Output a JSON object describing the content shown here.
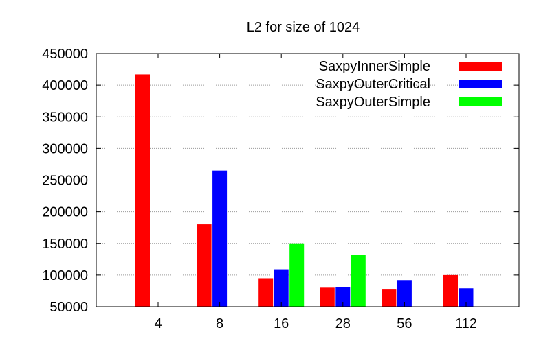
{
  "chart_data": {
    "type": "bar",
    "title": "L2 for size of 1024",
    "xlabel": "",
    "ylabel": "",
    "ylim": [
      50000,
      450000
    ],
    "yticks": [
      50000,
      100000,
      150000,
      200000,
      250000,
      300000,
      350000,
      400000,
      450000
    ],
    "grid": true,
    "legend_position": "top-right",
    "categories": [
      "4",
      "8",
      "16",
      "28",
      "56",
      "112"
    ],
    "series": [
      {
        "name": "SaxpyInnerSimple",
        "color": "#ff0000",
        "values": [
          417000,
          180000,
          95000,
          80000,
          77000,
          100000
        ]
      },
      {
        "name": "SaxpyOuterCritical",
        "color": "#0000ff",
        "values": [
          null,
          265000,
          109000,
          81000,
          92000,
          79000
        ]
      },
      {
        "name": "SaxpyOuterSimple",
        "color": "#00ff00",
        "values": [
          null,
          null,
          150000,
          132000,
          null,
          null
        ]
      }
    ]
  }
}
